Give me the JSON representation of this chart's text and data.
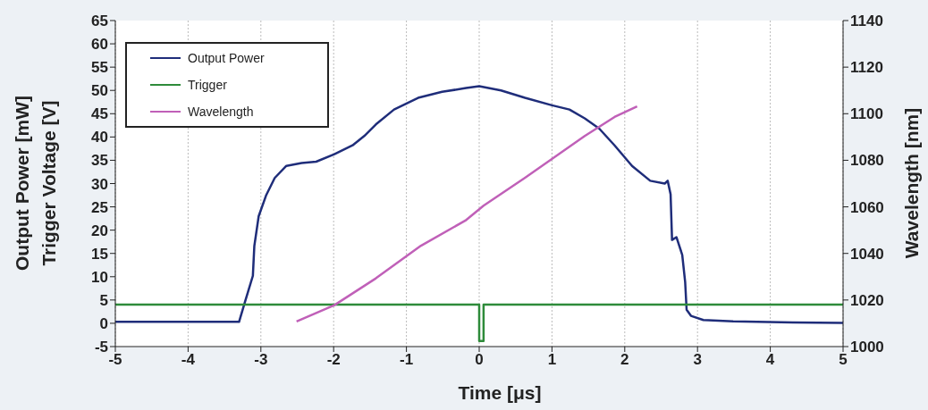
{
  "chart_data": {
    "type": "line",
    "xlabel": "Time [μs]",
    "ylabel": "Output Power [mW]\nTrigger Voltage [V]",
    "y2label": "Wavelength [nm]",
    "xlim": [
      -5,
      5
    ],
    "xticks": [
      -5,
      -4,
      -3,
      -2,
      -1,
      0,
      1,
      2,
      3,
      4,
      5
    ],
    "ylim": [
      -5,
      65
    ],
    "yticks": [
      -5,
      0,
      5,
      10,
      15,
      20,
      25,
      30,
      35,
      40,
      45,
      50,
      55,
      60,
      65
    ],
    "y2lim": [
      1000,
      1140
    ],
    "y2ticks": [
      1000,
      1020,
      1040,
      1060,
      1080,
      1100,
      1120,
      1140
    ],
    "grid": true,
    "legend": "top left",
    "line_style": "solid",
    "marker": "none",
    "series": [
      {
        "name": "Output Power",
        "color": "#1f2d7a",
        "x": [
          -5,
          -4,
          -3.5,
          -3.3,
          -3.22,
          -3.11,
          -3.09,
          -3.03,
          -2.93,
          -2.81,
          -2.65,
          -2.44,
          -2.24,
          -1.99,
          -1.74,
          -1.58,
          -1.42,
          -1.17,
          -0.84,
          -0.51,
          -0.18,
          0,
          0.3,
          0.63,
          1,
          1.24,
          1.45,
          1.65,
          1.86,
          2.1,
          2.35,
          2.55,
          2.59,
          2.63,
          2.65,
          2.71,
          2.79,
          2.83,
          2.85,
          2.91,
          3.08,
          3.49,
          4.31,
          5
        ],
        "values": [
          0.3,
          0.3,
          0.3,
          0.3,
          4.5,
          10.2,
          16.6,
          23,
          27.4,
          31.2,
          33.8,
          34.4,
          34.7,
          36.3,
          38.2,
          40.2,
          42.7,
          45.9,
          48.4,
          49.7,
          50.5,
          50.9,
          50,
          48.4,
          46.8,
          45.9,
          44,
          41.8,
          38.2,
          33.8,
          30.6,
          30,
          30.6,
          27.7,
          17.9,
          18.5,
          14.7,
          8.9,
          2.9,
          1.6,
          0.7,
          0.4,
          0.2,
          0.1
        ]
      },
      {
        "name": "Trigger",
        "color": "#2e8b3a",
        "x": [
          -5,
          0,
          0,
          0.06,
          0.06,
          5
        ],
        "values": [
          4,
          4,
          -3.8,
          -3.8,
          4,
          4
        ]
      },
      {
        "name": "Wavelength",
        "color": "#c060b8",
        "axis": "y2",
        "x": [
          -2.51,
          -1.99,
          -1.42,
          -0.8,
          -0.19,
          0.06,
          0.63,
          1.45,
          1.86,
          2.17
        ],
        "values": [
          1010.8,
          1017.8,
          1029.3,
          1043.3,
          1054.1,
          1060.5,
          1072.5,
          1090.4,
          1098.6,
          1103.1
        ]
      }
    ]
  }
}
